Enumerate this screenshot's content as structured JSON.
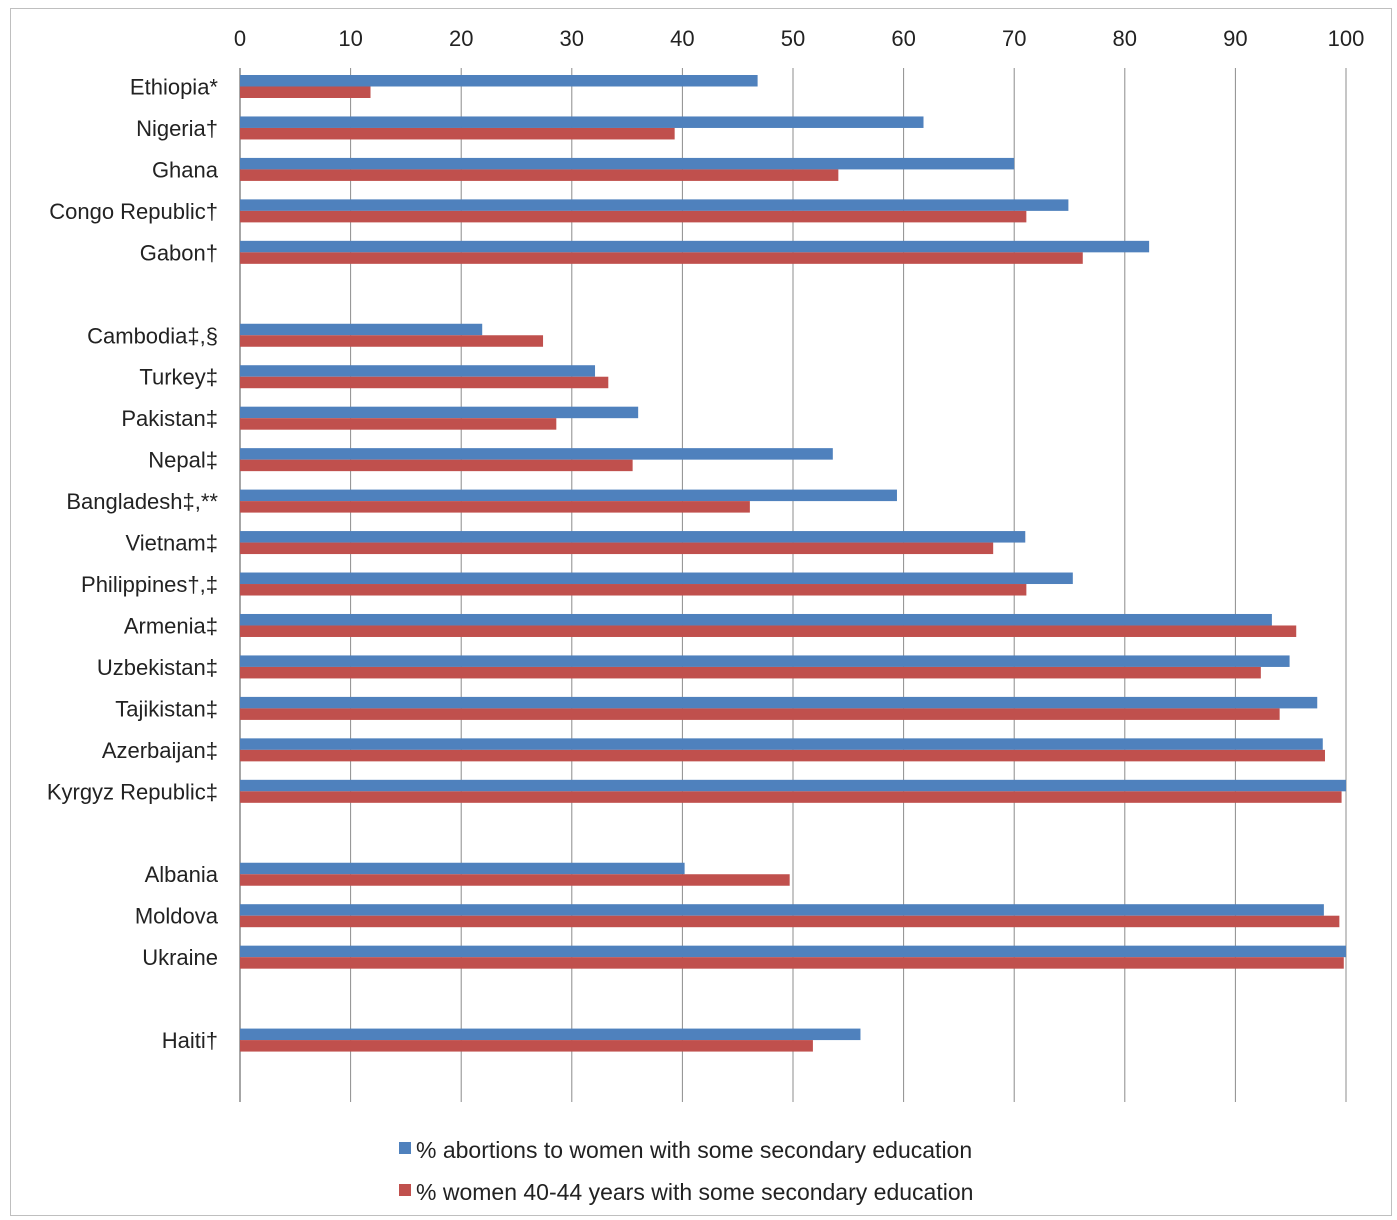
{
  "chart_data": {
    "type": "bar",
    "orientation": "horizontal",
    "xlim": [
      0,
      100
    ],
    "xticks": [
      "0",
      "10",
      "20",
      "30",
      "40",
      "50",
      "60",
      "70",
      "80",
      "90",
      "100"
    ],
    "x_axis_position": "top",
    "grid": true,
    "legend_position": "bottom-center",
    "categories": [
      "Ethiopia*",
      "Nigeria†",
      "Ghana",
      "Congo Republic†",
      "Gabon†",
      "",
      "Cambodia‡,§",
      "Turkey‡",
      "Pakistan‡",
      "Nepal‡",
      "Bangladesh‡,**",
      "Vietnam‡",
      "Philippines†,‡",
      "Armenia‡",
      "Uzbekistan‡",
      "Tajikistan‡",
      "Azerbaijan‡",
      "Kyrgyz Republic‡",
      "",
      "Albania",
      "Moldova",
      "Ukraine",
      "",
      "Haiti†"
    ],
    "series": [
      {
        "name": "% abortions to women with some secondary education",
        "color": "#4f81bd",
        "values": [
          46.8,
          61.8,
          70.0,
          74.9,
          82.2,
          null,
          21.9,
          32.1,
          36.0,
          53.6,
          59.4,
          71.0,
          75.3,
          93.3,
          94.9,
          97.4,
          97.9,
          100.0,
          null,
          40.2,
          98.0,
          100.0,
          null,
          56.1
        ]
      },
      {
        "name": "% women 40-44 years with some secondary education",
        "color": "#c0504d",
        "values": [
          11.8,
          39.3,
          54.1,
          71.1,
          76.2,
          null,
          27.4,
          33.3,
          28.6,
          35.5,
          46.1,
          68.1,
          71.1,
          95.5,
          92.3,
          94.0,
          98.1,
          99.6,
          null,
          49.7,
          99.4,
          99.8,
          null,
          51.8
        ]
      }
    ]
  }
}
